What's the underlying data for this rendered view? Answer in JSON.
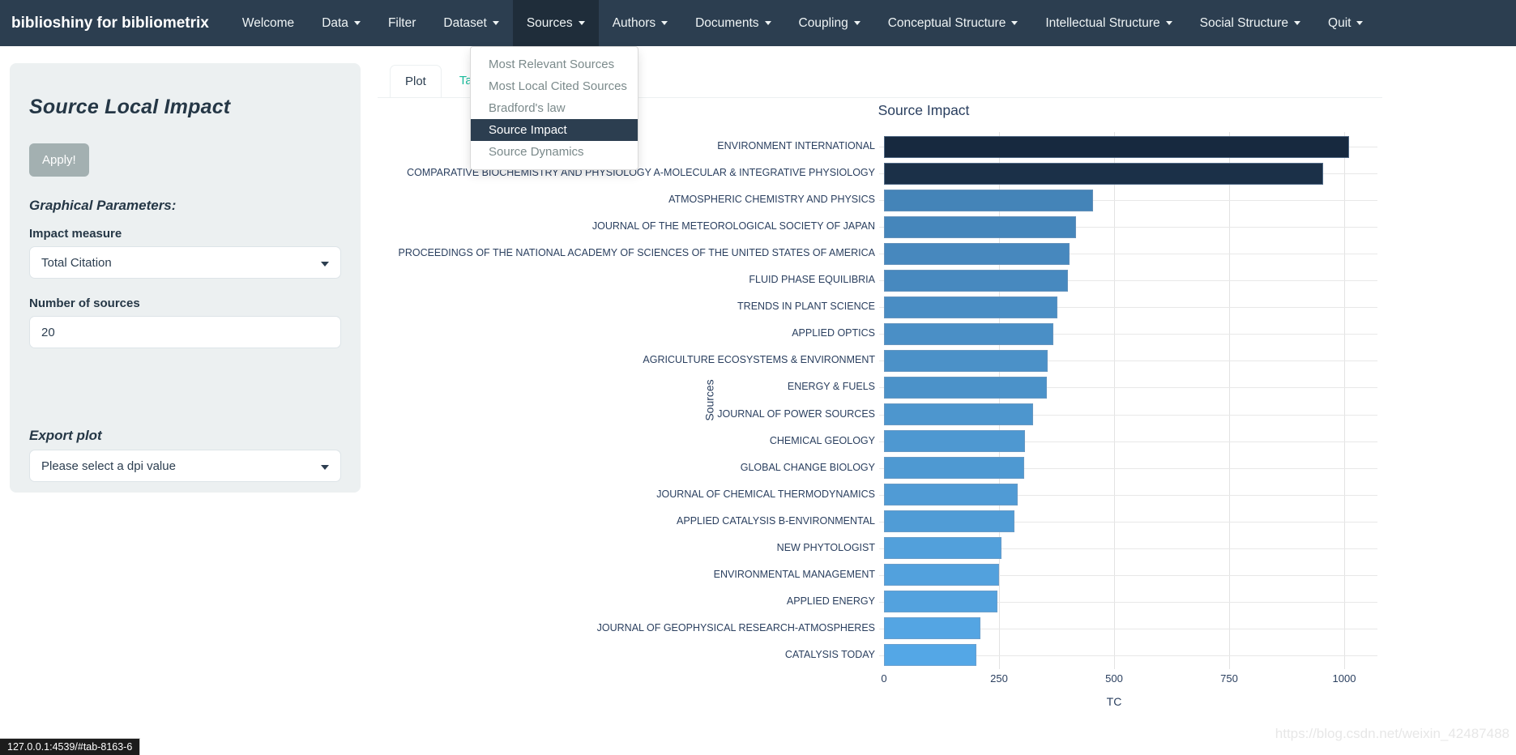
{
  "navbar": {
    "brand": "biblioshiny for bibliometrix",
    "items": [
      {
        "label": "Welcome",
        "caret": false,
        "active": false
      },
      {
        "label": "Data",
        "caret": true,
        "active": false
      },
      {
        "label": "Filter",
        "caret": false,
        "active": false
      },
      {
        "label": "Dataset",
        "caret": true,
        "active": false
      },
      {
        "label": "Sources",
        "caret": true,
        "active": true
      },
      {
        "label": "Authors",
        "caret": true,
        "active": false
      },
      {
        "label": "Documents",
        "caret": true,
        "active": false
      },
      {
        "label": "Coupling",
        "caret": true,
        "active": false
      },
      {
        "label": "Conceptual Structure",
        "caret": true,
        "active": false
      },
      {
        "label": "Intellectual Structure",
        "caret": true,
        "active": false
      },
      {
        "label": "Social Structure",
        "caret": true,
        "active": false
      },
      {
        "label": "Quit",
        "caret": true,
        "active": false
      }
    ]
  },
  "sources_menu": {
    "items": [
      {
        "label": "Most Relevant Sources",
        "active": false
      },
      {
        "label": "Most Local Cited Sources",
        "active": false
      },
      {
        "label": "Bradford's law",
        "active": false
      },
      {
        "label": "Source Impact",
        "active": true
      },
      {
        "label": "Source Dynamics",
        "active": false
      }
    ]
  },
  "sidebar": {
    "title": "Source Local Impact",
    "apply_label": "Apply!",
    "graphical_parameters_heading": "Graphical Parameters:",
    "impact_measure_label": "Impact measure",
    "impact_measure_value": "Total Citation",
    "number_of_sources_label": "Number of sources",
    "number_of_sources_value": "20",
    "export_plot_heading": "Export plot",
    "dpi_placeholder": "Please select a dpi value"
  },
  "tabs": [
    {
      "label": "Plot",
      "active": true
    },
    {
      "label": "Table",
      "active": false
    }
  ],
  "chart_data": {
    "type": "bar",
    "orientation": "horizontal",
    "title": "Source Impact",
    "xlabel": "TC",
    "ylabel": "Sources",
    "xlim": [
      0,
      1075
    ],
    "xticks": [
      0,
      250,
      500,
      750,
      1000
    ],
    "grid": true,
    "legend": false,
    "categories": [
      "ENVIRONMENT INTERNATIONAL",
      "COMPARATIVE BIOCHEMISTRY AND PHYSIOLOGY A-MOLECULAR & INTEGRATIVE PHYSIOLOGY",
      "ATMOSPHERIC CHEMISTRY AND PHYSICS",
      "JOURNAL OF THE METEOROLOGICAL SOCIETY OF JAPAN",
      "PROCEEDINGS OF THE NATIONAL ACADEMY OF SCIENCES OF THE UNITED STATES OF AMERICA",
      "FLUID PHASE EQUILIBRIA",
      "TRENDS IN PLANT SCIENCE",
      "APPLIED OPTICS",
      "AGRICULTURE ECOSYSTEMS & ENVIRONMENT",
      "ENERGY & FUELS",
      "JOURNAL OF POWER SOURCES",
      "CHEMICAL GEOLOGY",
      "GLOBAL CHANGE BIOLOGY",
      "JOURNAL OF CHEMICAL THERMODYNAMICS",
      "APPLIED CATALYSIS B-ENVIRONMENTAL",
      "NEW PHYTOLOGIST",
      "ENVIRONMENTAL MANAGEMENT",
      "APPLIED ENERGY",
      "JOURNAL OF GEOPHYSICAL RESEARCH-ATMOSPHERES",
      "CATALYSIS TODAY"
    ],
    "values": [
      1011,
      954,
      455,
      417,
      404,
      400,
      376,
      368,
      356,
      353,
      324,
      306,
      305,
      290,
      283,
      255,
      250,
      246,
      210,
      200
    ],
    "bar_colors": [
      "#17293f",
      "#1b3048",
      "#4484b8",
      "#4586bb",
      "#4788be",
      "#4789bf",
      "#498dc4",
      "#4a8fc6",
      "#4b91c8",
      "#4b92c9",
      "#4d96ce",
      "#4e98d1",
      "#4e99d2",
      "#509bd5",
      "#509cd6",
      "#52a0db",
      "#52a1dd",
      "#53a2de",
      "#54a5e3",
      "#54a7e6"
    ]
  },
  "status_bar": {
    "text": "127.0.0.1:4539/#tab-8163-6"
  },
  "watermark": {
    "text": "https://blog.csdn.net/weixin_42487488"
  }
}
